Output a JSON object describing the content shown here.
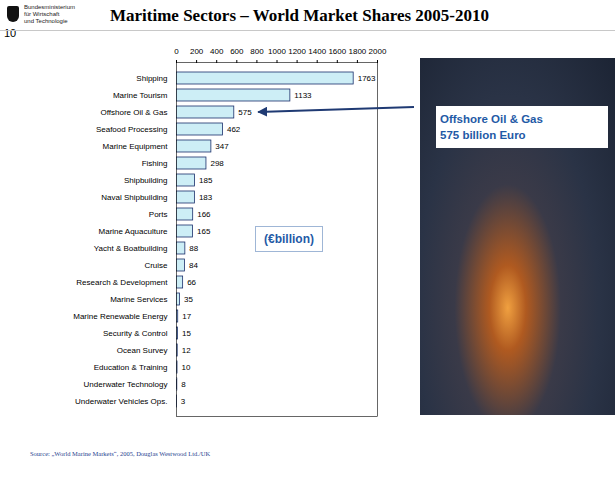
{
  "slide": {
    "logo": [
      "Bundesministerium",
      "für Wirtschaft",
      "und Technologie"
    ],
    "page_number": "10",
    "source": "Source: „World Marine Markets“, 2005, Douglas Westwood Ltd./UK"
  },
  "chart_data": {
    "type": "bar",
    "orientation": "horizontal",
    "title": "Maritime Sectors – World Market Shares 2005-2010",
    "categories": [
      "Shipping",
      "Marine Tourism",
      "Offshore Oil & Gas",
      "Seafood Processing",
      "Marine Equipment",
      "Fishing",
      "Shipbuilding",
      "Naval Shipbuilding",
      "Ports",
      "Marine Aquaculture",
      "Yacht & Boatbuilding",
      "Cruise",
      "Research & Development",
      "Marine Services",
      "Marine Renewable Energy",
      "Security & Control",
      "Ocean Survey",
      "Education & Training",
      "Underwater Technology",
      "Underwater Vehicles Ops."
    ],
    "values": [
      1763,
      1133,
      575,
      462,
      347,
      298,
      185,
      183,
      166,
      165,
      88,
      84,
      66,
      35,
      17,
      15,
      12,
      10,
      8,
      3
    ],
    "color": "#cdeef6",
    "xlim": [
      0,
      2000
    ],
    "xticks": [
      0,
      200,
      400,
      600,
      800,
      1000,
      1200,
      1400,
      1600,
      1800,
      2000
    ],
    "grid": false,
    "data_labels": true,
    "annotations": [
      {
        "text": [
          "(€billion)"
        ]
      },
      {
        "text": [
          "Offshore Oil & Gas",
          "575 billion Euro"
        ],
        "category": "Offshore Oil & Gas"
      }
    ]
  }
}
